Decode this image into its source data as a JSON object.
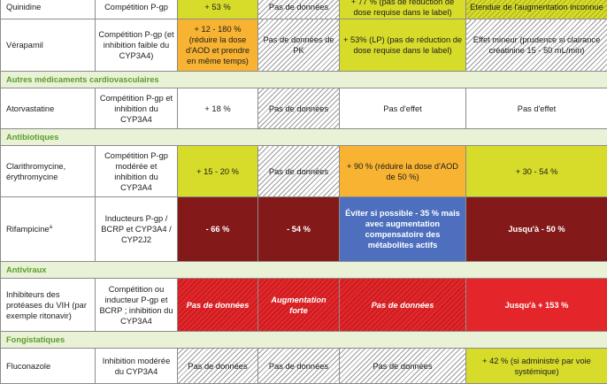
{
  "rows": {
    "quinidine": {
      "drug": "Quinidine",
      "mechanism": "Compétition P-gp",
      "c3": "+ 53 %",
      "c4": "Pas de données",
      "c5": "+ 77 % (pas de réduction de dose requise dans le label)",
      "c6": "Etendue de l'augmentation inconnue"
    },
    "verapamil": {
      "drug": "Vérapamil",
      "mechanism": "Compétition P-gp (et inhibition faible du CYP3A4)",
      "c3": "+ 12 - 180 % (réduire la dose d'AOD et prendre en même temps)",
      "c4": "Pas de données de PK",
      "c5": "+ 53% (LP) (pas de réduction de dose requise dans le label)",
      "c6": "Effet mineur (prudence si clairance créatinine 15 - 50 mL/min)"
    },
    "section_cardio": "Autres médicaments cardiovasculaires",
    "atorvastatine": {
      "drug": "Atorvastatine",
      "mechanism": "Compétition P-gp et inhibition du CYP3A4",
      "c3": "+ 18 %",
      "c4": "Pas de données",
      "c5": "Pas d'effet",
      "c6": "Pas d'effet"
    },
    "section_antibio": "Antibiotiques",
    "clarithro": {
      "drug": "Clarithromycine, érythromycine",
      "mechanism": "Compétition P-gp modérée et inhibition du CYP3A4",
      "c3": "+ 15 - 20 %",
      "c4": "Pas de données",
      "c5": "+ 90 % (réduire la dose d'AOD de 50 %)",
      "c6": "+ 30 - 54 %"
    },
    "rifampicine": {
      "drug": "Rifampicine",
      "drug_sup": "a",
      "mechanism": "Inducteurs P-gp / BCRP et CYP3A4 / CYP2J2",
      "c3": "- 66 %",
      "c4": "- 54 %",
      "c5": "Éviter si possible - 35 % mais avec augmentation compensatoire des métabolites actifs",
      "c6": "Jusqu'à - 50 %"
    },
    "section_antiviraux": "Antiviraux",
    "inhibiteurs_vih": {
      "drug": "Inhibiteurs des protéases du VIH (par exemple ritonavir)",
      "mechanism": "Compétition ou inducteur P-gp et BCRP ; inhibition du CYP3A4",
      "c3": "Pas de données",
      "c4": "Augmentation forte",
      "c5": "Pas de données",
      "c6": "Jusqu'à + 153 %"
    },
    "section_fongi": "Fongistatiques",
    "fluconazole": {
      "drug": "Fluconazole",
      "mechanism": "Inhibition modérée du CYP3A4",
      "c3": "Pas de données",
      "c4": "Pas de données",
      "c5": "Pas de données",
      "c6": "+ 42 % (si administré par voie systémique)"
    }
  }
}
